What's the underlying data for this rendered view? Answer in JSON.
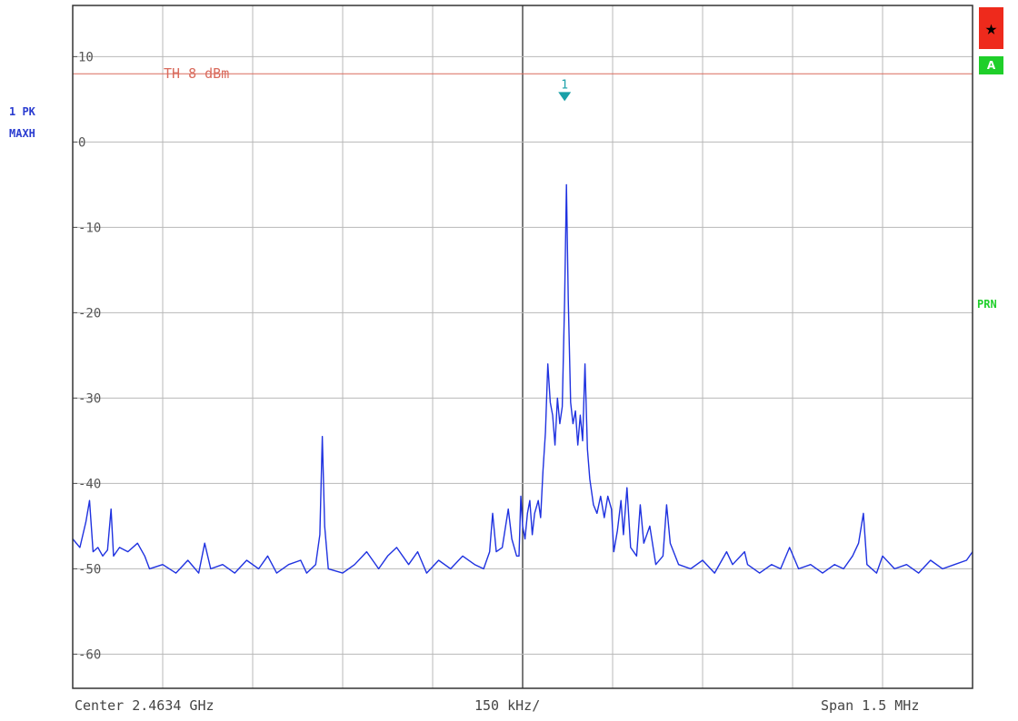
{
  "trace_info": {
    "line1": "1 PK",
    "line2": "MAXH"
  },
  "bottom": {
    "center": "Center 2.4634 GHz",
    "per_div": "150 kHz/",
    "span": "Span 1.5 MHz"
  },
  "badges": {
    "star": "★",
    "a": "A",
    "prn": "PRN"
  },
  "colors": {
    "trace": "#1f32e0",
    "threshold": "#d96a5c",
    "marker": "#1aa0a8",
    "grid": "#b8b8b8",
    "star_badge": "#ee2a1c",
    "status_green": "#1fcf2a"
  },
  "chart_data": {
    "type": "line",
    "title": "",
    "xlabel": "",
    "ylabel": "",
    "x_range_mhz": [
      2462.65,
      2464.15
    ],
    "ylim": [
      -64,
      16
    ],
    "grid": true,
    "x_divisions": 10,
    "y_ticks": [
      10,
      0,
      -10,
      -20,
      -30,
      -40,
      -50,
      -60
    ],
    "y_tick_labels": [
      "10",
      "0",
      "-10",
      "-20",
      "-30",
      "-40",
      "-50",
      "-60"
    ],
    "threshold": {
      "value": 8,
      "label": "TH 8 dBm"
    },
    "marker": {
      "label": "1",
      "x_mhz": 2463.47,
      "y": 5
    },
    "series": [
      {
        "points": [
          [
            2462.65,
            -46.5
          ],
          [
            2462.662,
            -47.5
          ],
          [
            2462.672,
            -44.5
          ],
          [
            2462.678,
            -42.0
          ],
          [
            2462.684,
            -48.0
          ],
          [
            2462.692,
            -47.5
          ],
          [
            2462.7,
            -48.5
          ],
          [
            2462.708,
            -47.8
          ],
          [
            2462.714,
            -43.0
          ],
          [
            2462.718,
            -48.5
          ],
          [
            2462.728,
            -47.5
          ],
          [
            2462.742,
            -48.0
          ],
          [
            2462.758,
            -47.0
          ],
          [
            2462.77,
            -48.5
          ],
          [
            2462.778,
            -50.0
          ],
          [
            2462.8,
            -49.5
          ],
          [
            2462.822,
            -50.5
          ],
          [
            2462.842,
            -49.0
          ],
          [
            2462.86,
            -50.5
          ],
          [
            2462.87,
            -47.0
          ],
          [
            2462.88,
            -50.0
          ],
          [
            2462.9,
            -49.5
          ],
          [
            2462.92,
            -50.5
          ],
          [
            2462.94,
            -49.0
          ],
          [
            2462.96,
            -50.0
          ],
          [
            2462.975,
            -48.5
          ],
          [
            2462.99,
            -50.5
          ],
          [
            2463.01,
            -49.5
          ],
          [
            2463.03,
            -49.0
          ],
          [
            2463.04,
            -50.5
          ],
          [
            2463.055,
            -49.5
          ],
          [
            2463.062,
            -46.0
          ],
          [
            2463.066,
            -34.5
          ],
          [
            2463.07,
            -45.0
          ],
          [
            2463.076,
            -50.0
          ],
          [
            2463.1,
            -50.5
          ],
          [
            2463.12,
            -49.5
          ],
          [
            2463.14,
            -48.0
          ],
          [
            2463.16,
            -50.0
          ],
          [
            2463.175,
            -48.5
          ],
          [
            2463.19,
            -47.5
          ],
          [
            2463.21,
            -49.5
          ],
          [
            2463.225,
            -48.0
          ],
          [
            2463.24,
            -50.5
          ],
          [
            2463.26,
            -49.0
          ],
          [
            2463.28,
            -50.0
          ],
          [
            2463.3,
            -48.5
          ],
          [
            2463.32,
            -49.5
          ],
          [
            2463.335,
            -50.0
          ],
          [
            2463.345,
            -48.0
          ],
          [
            2463.35,
            -43.5
          ],
          [
            2463.356,
            -48.0
          ],
          [
            2463.366,
            -47.5
          ],
          [
            2463.376,
            -43.0
          ],
          [
            2463.382,
            -46.5
          ],
          [
            2463.39,
            -48.5
          ],
          [
            2463.394,
            -48.5
          ],
          [
            2463.397,
            -41.5
          ],
          [
            2463.4,
            -45.0
          ],
          [
            2463.404,
            -46.5
          ],
          [
            2463.408,
            -43.5
          ],
          [
            2463.412,
            -42.0
          ],
          [
            2463.416,
            -46.0
          ],
          [
            2463.42,
            -43.5
          ],
          [
            2463.426,
            -42.0
          ],
          [
            2463.43,
            -44.0
          ],
          [
            2463.434,
            -38.5
          ],
          [
            2463.438,
            -34.0
          ],
          [
            2463.442,
            -26.0
          ],
          [
            2463.446,
            -30.5
          ],
          [
            2463.45,
            -32.0
          ],
          [
            2463.454,
            -35.5
          ],
          [
            2463.458,
            -30.0
          ],
          [
            2463.462,
            -33.0
          ],
          [
            2463.466,
            -31.0
          ],
          [
            2463.47,
            -18.5
          ],
          [
            2463.473,
            -5.0
          ],
          [
            2463.476,
            -18.5
          ],
          [
            2463.48,
            -30.5
          ],
          [
            2463.484,
            -33.0
          ],
          [
            2463.488,
            -31.5
          ],
          [
            2463.492,
            -35.5
          ],
          [
            2463.496,
            -32.0
          ],
          [
            2463.5,
            -35.0
          ],
          [
            2463.504,
            -26.0
          ],
          [
            2463.508,
            -36.0
          ],
          [
            2463.512,
            -39.5
          ],
          [
            2463.518,
            -42.5
          ],
          [
            2463.524,
            -43.5
          ],
          [
            2463.53,
            -41.5
          ],
          [
            2463.536,
            -44.0
          ],
          [
            2463.542,
            -41.5
          ],
          [
            2463.548,
            -43.0
          ],
          [
            2463.552,
            -48.0
          ],
          [
            2463.558,
            -45.5
          ],
          [
            2463.564,
            -42.0
          ],
          [
            2463.568,
            -46.0
          ],
          [
            2463.574,
            -40.5
          ],
          [
            2463.58,
            -47.5
          ],
          [
            2463.59,
            -48.5
          ],
          [
            2463.596,
            -42.5
          ],
          [
            2463.602,
            -47.0
          ],
          [
            2463.612,
            -45.0
          ],
          [
            2463.622,
            -49.5
          ],
          [
            2463.634,
            -48.5
          ],
          [
            2463.64,
            -42.5
          ],
          [
            2463.646,
            -47.0
          ],
          [
            2463.66,
            -49.5
          ],
          [
            2463.68,
            -50.0
          ],
          [
            2463.7,
            -49.0
          ],
          [
            2463.72,
            -50.5
          ],
          [
            2463.74,
            -48.0
          ],
          [
            2463.75,
            -49.5
          ],
          [
            2463.77,
            -48.0
          ],
          [
            2463.775,
            -49.5
          ],
          [
            2463.795,
            -50.5
          ],
          [
            2463.815,
            -49.5
          ],
          [
            2463.83,
            -50.0
          ],
          [
            2463.845,
            -47.5
          ],
          [
            2463.86,
            -50.0
          ],
          [
            2463.88,
            -49.5
          ],
          [
            2463.9,
            -50.5
          ],
          [
            2463.92,
            -49.5
          ],
          [
            2463.935,
            -50.0
          ],
          [
            2463.95,
            -48.5
          ],
          [
            2463.96,
            -47.0
          ],
          [
            2463.968,
            -43.5
          ],
          [
            2463.974,
            -49.5
          ],
          [
            2463.99,
            -50.5
          ],
          [
            2464.0,
            -48.5
          ],
          [
            2464.02,
            -50.0
          ],
          [
            2464.04,
            -49.5
          ],
          [
            2464.06,
            -50.5
          ],
          [
            2464.08,
            -49.0
          ],
          [
            2464.1,
            -50.0
          ],
          [
            2464.12,
            -49.5
          ],
          [
            2464.14,
            -49.0
          ],
          [
            2464.15,
            -48.0
          ]
        ]
      }
    ]
  }
}
